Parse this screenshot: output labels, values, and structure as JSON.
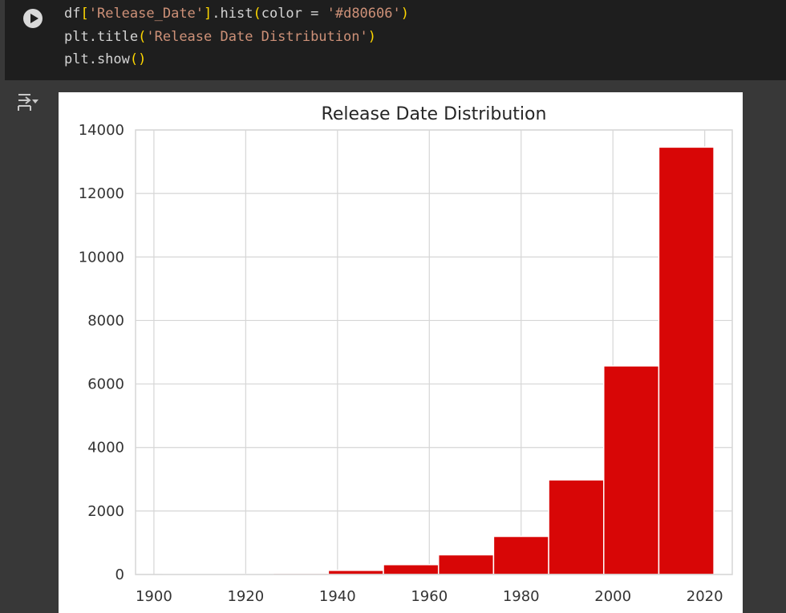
{
  "code_cell": {
    "run_icon": "play-circle-icon",
    "lines": [
      [
        {
          "t": "df",
          "c": ""
        },
        {
          "t": "[",
          "c": "br1"
        },
        {
          "t": "'Release_Date'",
          "c": "str"
        },
        {
          "t": "]",
          "c": "br1"
        },
        {
          "t": ".hist",
          "c": ""
        },
        {
          "t": "(",
          "c": "br1"
        },
        {
          "t": "color = ",
          "c": ""
        },
        {
          "t": "'#d80606'",
          "c": "str"
        },
        {
          "t": ")",
          "c": "br1"
        }
      ],
      [
        {
          "t": "plt.title",
          "c": ""
        },
        {
          "t": "(",
          "c": "br1"
        },
        {
          "t": "'Release Date Distribution'",
          "c": "str"
        },
        {
          "t": ")",
          "c": "br1"
        }
      ],
      [
        {
          "t": "plt.show",
          "c": ""
        },
        {
          "t": "(",
          "c": "br1"
        },
        {
          "t": ")",
          "c": "br1"
        }
      ]
    ]
  },
  "output": {
    "toggle_icon": "output-toggle-icon"
  },
  "colors": {
    "bar": "#d80606",
    "grid": "#d6d6d6",
    "tick_text": "#333333",
    "title_text": "#262626",
    "code_bg": "#1e1e1e",
    "page_bg": "#383838"
  },
  "chart_data": {
    "type": "bar",
    "subtype": "histogram",
    "title": "Release Date Distribution",
    "xlabel": "",
    "ylabel": "",
    "xlim": [
      1896,
      2026
    ],
    "ylim": [
      0,
      14000
    ],
    "grid": true,
    "bins": [
      {
        "start": 1902,
        "end": 1914,
        "value": 3
      },
      {
        "start": 1914,
        "end": 1926,
        "value": 10
      },
      {
        "start": 1926,
        "end": 1938,
        "value": 40
      },
      {
        "start": 1938,
        "end": 1950,
        "value": 130
      },
      {
        "start": 1950,
        "end": 1962,
        "value": 310
      },
      {
        "start": 1962,
        "end": 1974,
        "value": 620
      },
      {
        "start": 1974,
        "end": 1986,
        "value": 1200
      },
      {
        "start": 1986,
        "end": 1998,
        "value": 2980
      },
      {
        "start": 1998,
        "end": 2010,
        "value": 6570
      },
      {
        "start": 2010,
        "end": 2022,
        "value": 13460
      }
    ],
    "x_ticks": [
      "1900",
      "1920",
      "1940",
      "1960",
      "1980",
      "2000",
      "2020"
    ],
    "y_ticks": [
      "0",
      "2000",
      "4000",
      "6000",
      "8000",
      "10000",
      "12000",
      "14000"
    ]
  }
}
